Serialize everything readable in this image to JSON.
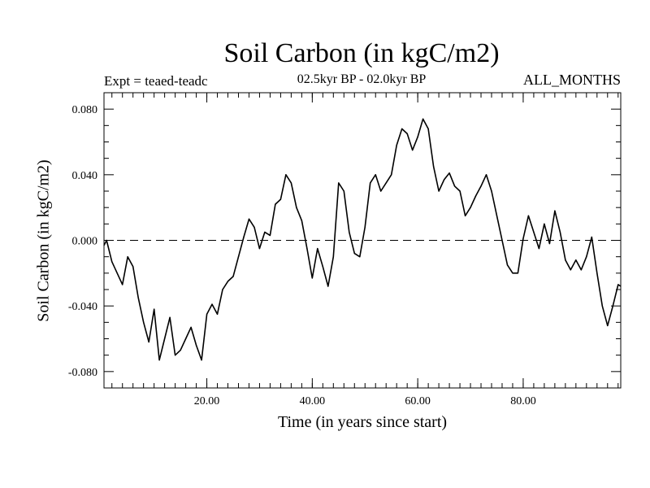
{
  "chart_data": {
    "type": "line",
    "title": "Soil Carbon (in kgC/m2)",
    "subtitle": "02.5kyr BP - 02.0kyr BP",
    "experiment_label": "Expt = teaed-teadc",
    "months_label": "ALL_MONTHS",
    "xlabel": "Time (in years since start)",
    "ylabel": "Soil Carbon (in kgC/m2)",
    "xlim": [
      0.5,
      98.5
    ],
    "ylim": [
      -0.09,
      0.09
    ],
    "xticks": [
      20,
      40,
      60,
      80
    ],
    "xtick_labels": [
      "20.00",
      "40.00",
      "60.00",
      "80.00"
    ],
    "yticks": [
      0.08,
      0.04,
      0.0,
      -0.04,
      -0.08
    ],
    "ytick_labels": [
      "0.080",
      "0.040",
      "0.000",
      "-0.040",
      "-0.080"
    ],
    "reference_line": {
      "y": 0.0,
      "style": "dashed"
    },
    "series": [
      {
        "name": "Soil Carbon",
        "color": "#000000",
        "x": [
          0.5,
          1,
          2,
          3,
          4,
          5,
          6,
          7,
          8,
          9,
          10,
          11,
          12,
          13,
          14,
          15,
          16,
          17,
          18,
          19,
          20,
          21,
          22,
          23,
          24,
          25,
          26,
          27,
          28,
          29,
          30,
          31,
          32,
          33,
          34,
          35,
          36,
          37,
          38,
          39,
          40,
          41,
          42,
          43,
          44,
          45,
          46,
          47,
          48,
          49,
          50,
          51,
          52,
          53,
          54,
          55,
          56,
          57,
          58,
          59,
          60,
          61,
          62,
          63,
          64,
          65,
          66,
          67,
          68,
          69,
          70,
          71,
          72,
          73,
          74,
          75,
          76,
          77,
          78,
          79,
          80,
          81,
          82,
          83,
          84,
          85,
          86,
          87,
          88,
          89,
          90,
          91,
          92,
          93,
          94,
          95,
          96,
          97,
          98,
          98.5
        ],
        "values": [
          -0.003,
          0.0,
          -0.013,
          -0.02,
          -0.027,
          -0.01,
          -0.016,
          -0.035,
          -0.05,
          -0.062,
          -0.042,
          -0.073,
          -0.06,
          -0.047,
          -0.07,
          -0.067,
          -0.06,
          -0.053,
          -0.064,
          -0.073,
          -0.045,
          -0.039,
          -0.045,
          -0.03,
          -0.025,
          -0.022,
          -0.01,
          0.002,
          0.013,
          0.008,
          -0.005,
          0.005,
          0.003,
          0.022,
          0.025,
          0.04,
          0.035,
          0.02,
          0.012,
          -0.005,
          -0.023,
          -0.005,
          -0.016,
          -0.028,
          -0.01,
          0.035,
          0.03,
          0.005,
          -0.008,
          -0.01,
          0.008,
          0.035,
          0.04,
          0.03,
          0.035,
          0.04,
          0.058,
          0.068,
          0.065,
          0.055,
          0.063,
          0.074,
          0.068,
          0.045,
          0.03,
          0.037,
          0.041,
          0.033,
          0.03,
          0.015,
          0.02,
          0.027,
          0.033,
          0.04,
          0.03,
          0.015,
          0.0,
          -0.015,
          -0.02,
          -0.02,
          0.001,
          0.015,
          0.005,
          -0.005,
          0.01,
          -0.002,
          0.018,
          0.005,
          -0.012,
          -0.018,
          -0.012,
          -0.018,
          -0.01,
          0.002,
          -0.02,
          -0.04,
          -0.052,
          -0.04,
          -0.027,
          -0.028
        ]
      }
    ]
  }
}
